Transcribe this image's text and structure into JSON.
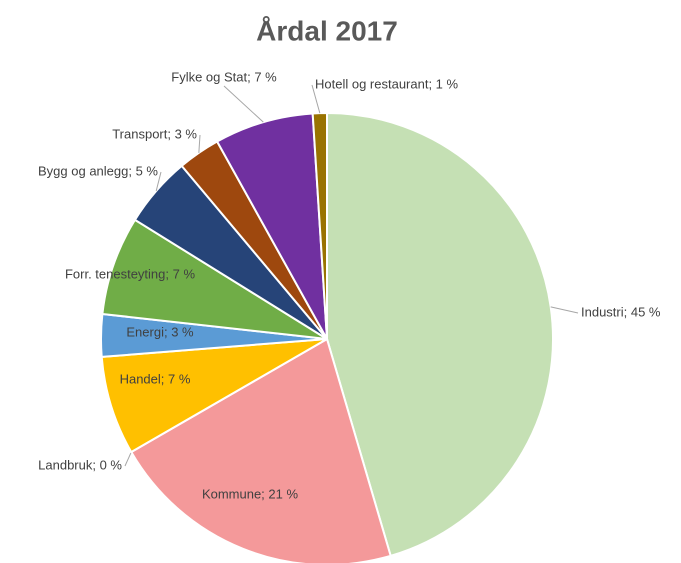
{
  "chart_data": {
    "type": "pie",
    "title": "Årdal 2017",
    "values": [
      45,
      21,
      0,
      7,
      3,
      7,
      5,
      3,
      7,
      1
    ],
    "value_labels": [
      "Industri; 45 %",
      "Kommune; 21 %",
      "Landbruk; 0 %",
      "Handel; 7 %",
      "Energi; 3 %",
      "Forr. tenesteyting; 7 %",
      "Bygg og anlegg; 5 %",
      "Transport; 3 %",
      "Fylke og Stat; 7 %",
      "Hotell og restaurant; 1 %"
    ],
    "colors": [
      "#c5e0b4",
      "#f4999a",
      "#bfbfbf",
      "#ffc000",
      "#5b9bd5",
      "#70ad47",
      "#264478",
      "#9e480e",
      "#7030a0",
      "#997300"
    ]
  }
}
